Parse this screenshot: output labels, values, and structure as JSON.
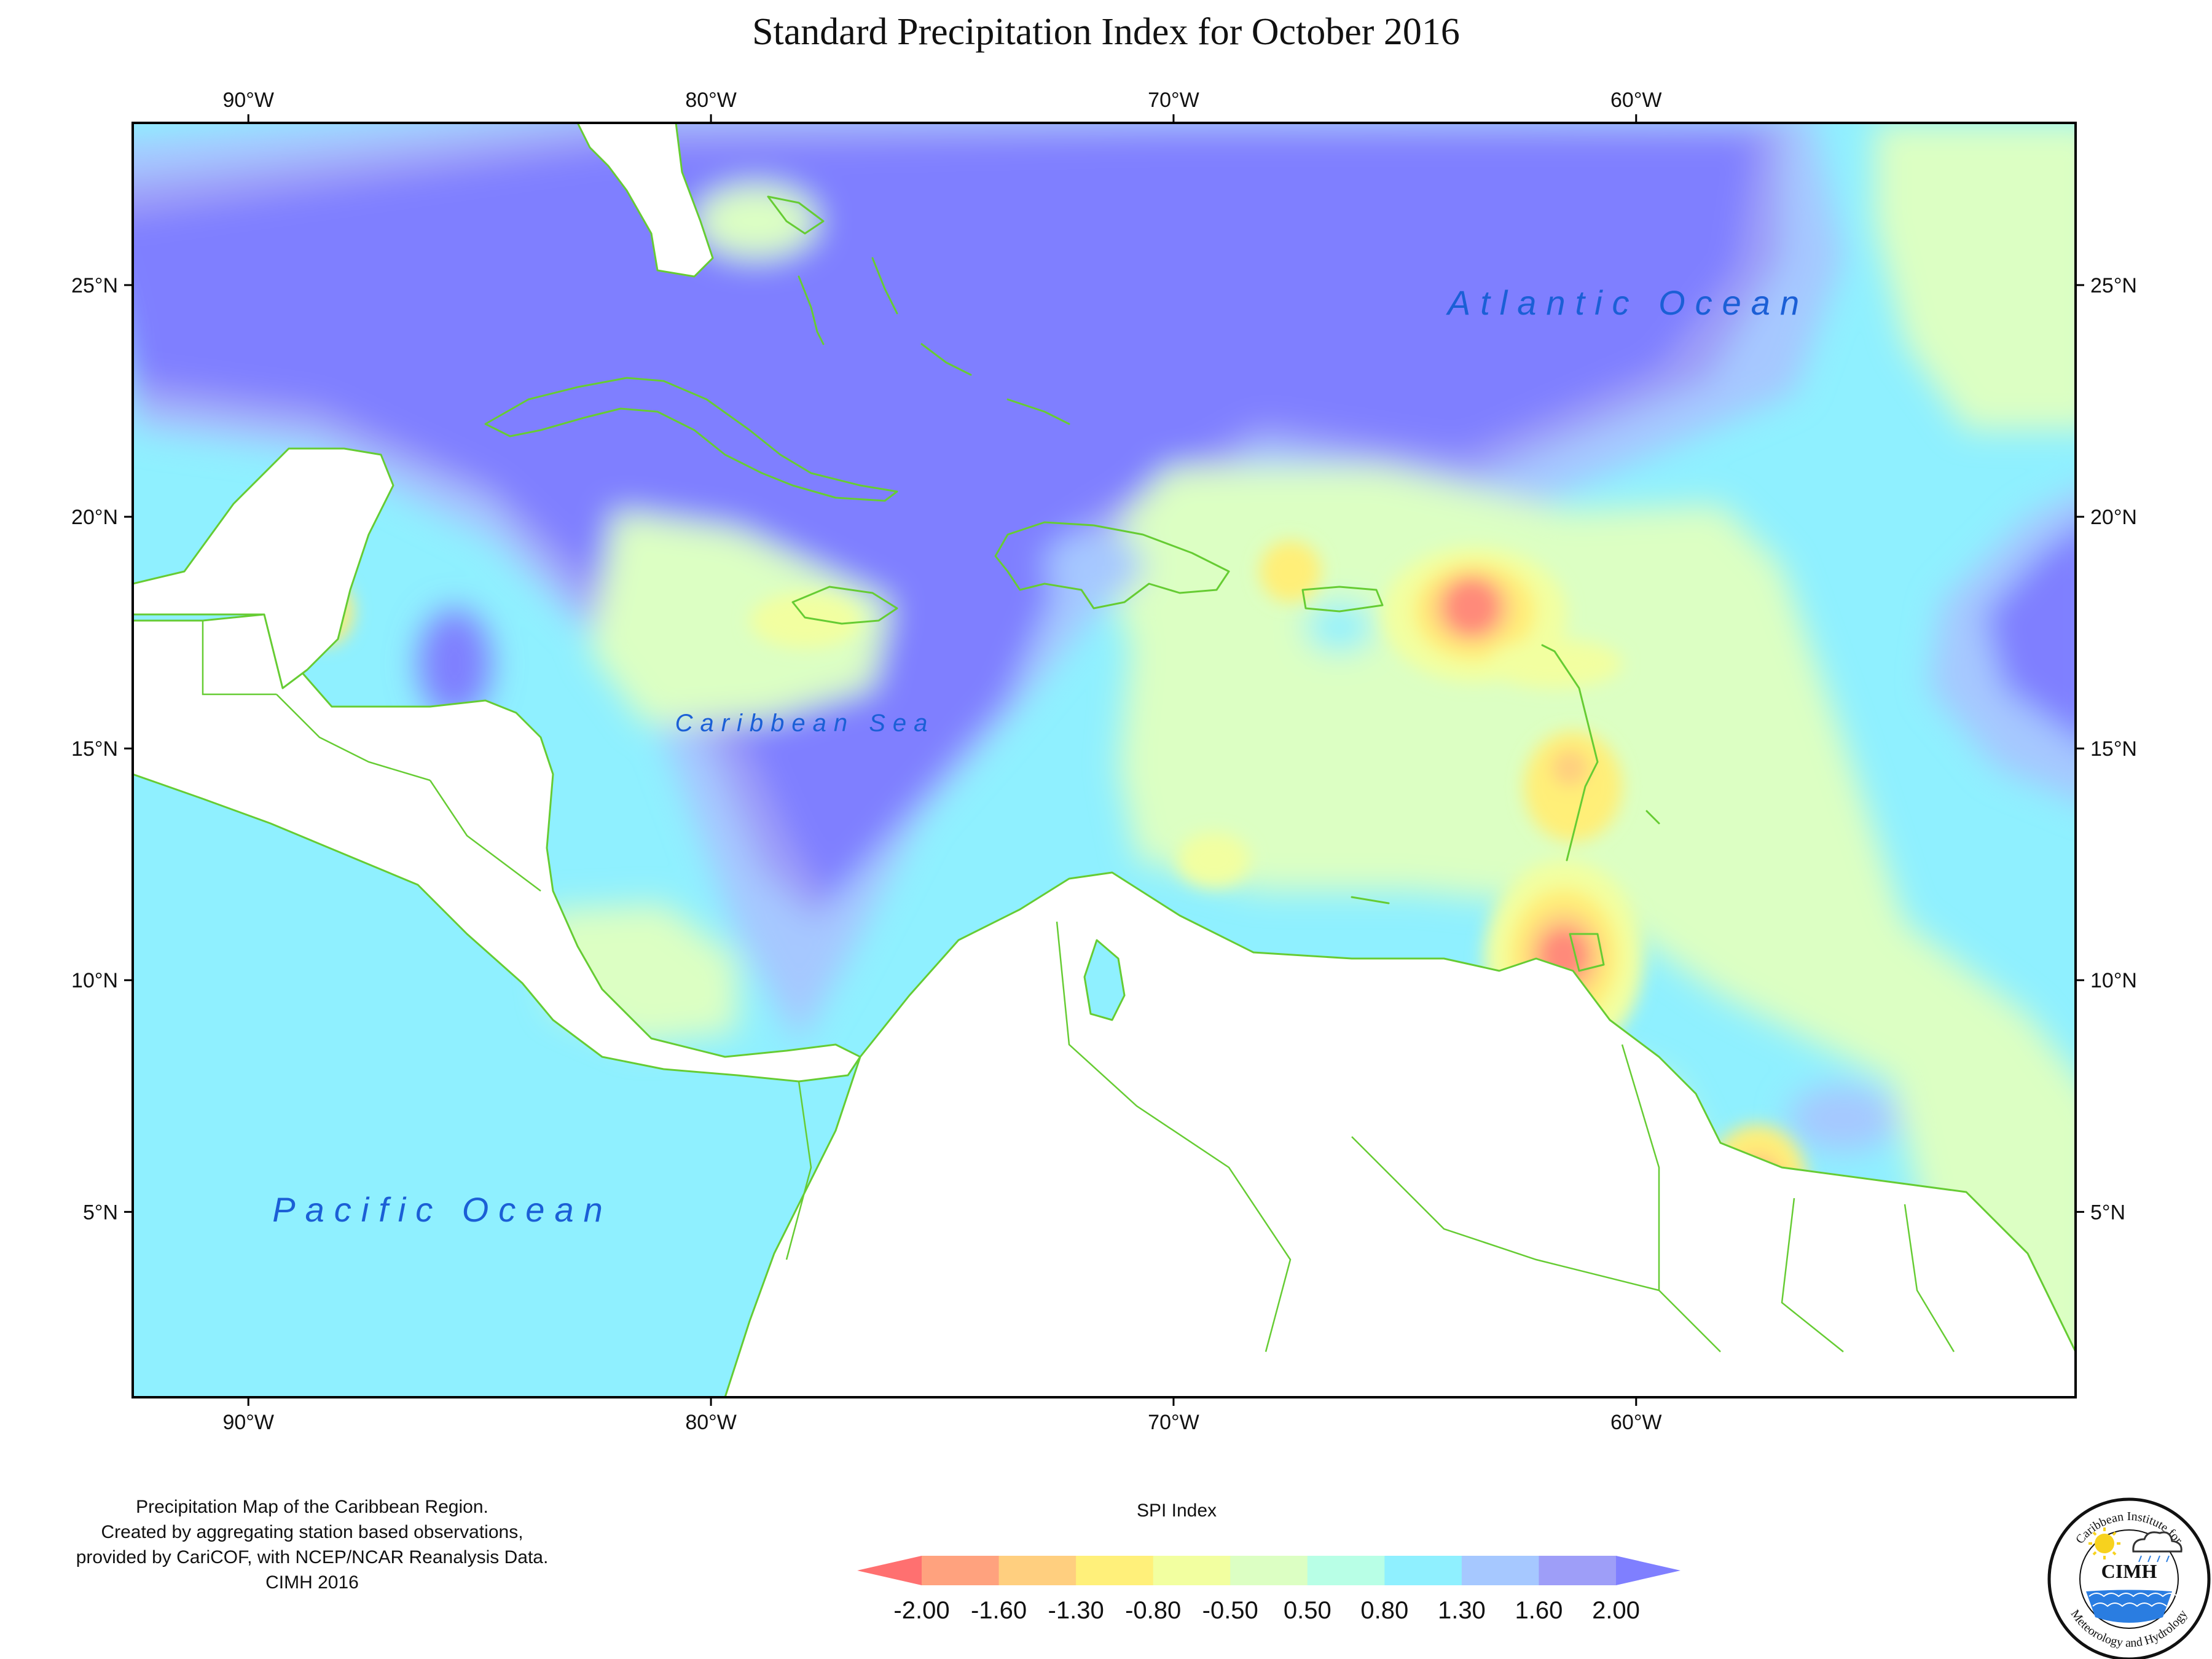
{
  "title": "Standard Precipitation Index for October 2016",
  "map": {
    "lon_range": [
      -92.5,
      -50.5
    ],
    "lat_range": [
      1,
      28.5
    ],
    "lon_ticks": [
      {
        "value": -90,
        "label": "90°W"
      },
      {
        "value": -80,
        "label": "80°W"
      },
      {
        "value": -70,
        "label": "70°W"
      },
      {
        "value": -60,
        "label": "60°W"
      }
    ],
    "lat_ticks": [
      {
        "value": 25,
        "label": "25°N"
      },
      {
        "value": 20,
        "label": "20°N"
      },
      {
        "value": 15,
        "label": "15°N"
      },
      {
        "value": 10,
        "label": "10°N"
      },
      {
        "value": 5,
        "label": "5°N"
      }
    ],
    "ocean_labels": {
      "atlantic": "Atlantic Ocean",
      "caribbean": "Caribbean Sea",
      "pacific": "Pacific Ocean"
    },
    "colors": {
      "land": "#ffffff",
      "coastline": "#66cc33",
      "wet_strong": "#7f7fff",
      "wet": "#9e9ef8",
      "wet_mild": "#a6c8ff",
      "moist": "#8ff0ff",
      "near_normal": "#dcffc3",
      "dry_mild": "#f2ffa0",
      "dry": "#ffef78",
      "dry_strong": "#ffd080",
      "very_dry": "#ff9c88",
      "extreme_dry": "#ff6f6f"
    }
  },
  "footnote": {
    "line1": "Precipitation Map of the Caribbean Region.",
    "line2": "Created by aggregating station based observations,",
    "line3": "provided by CariCOF, with NCEP/NCAR Reanalysis Data.",
    "line4": "CIMH 2016"
  },
  "legend": {
    "title": "SPI Index",
    "labels": [
      "-2.00",
      "-1.60",
      "-1.30",
      "-0.80",
      "-0.50",
      "0.50",
      "0.80",
      "1.30",
      "1.60",
      "2.00"
    ],
    "colors": [
      "#ff7070",
      "#ffa27e",
      "#ffcf7f",
      "#fff07a",
      "#f2ffa0",
      "#dcffc3",
      "#b8ffe6",
      "#8ff0ff",
      "#a6c8ff",
      "#9e9ef8",
      "#7f7fff"
    ]
  },
  "logo": {
    "top_text": "Caribbean Institute for",
    "center_text": "CIMH",
    "bottom_text": "Meteorology and Hydrology"
  }
}
